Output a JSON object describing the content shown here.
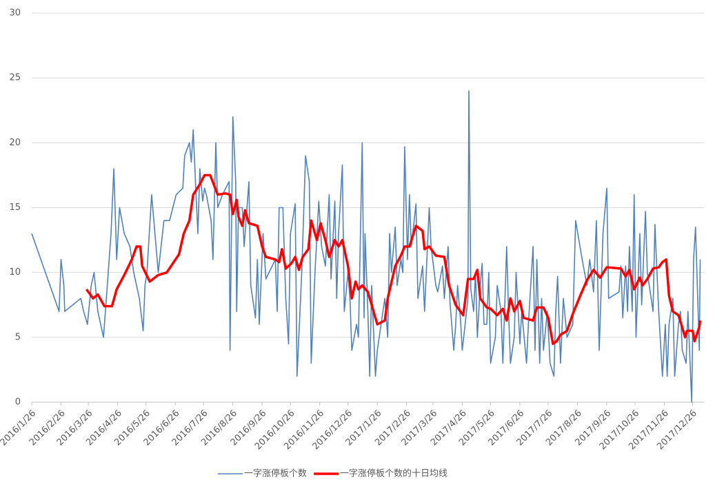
{
  "chart_data": {
    "type": "line",
    "xlim": [
      "2016/1/26",
      "2018/1/7"
    ],
    "xticks": [
      "2016/1/26",
      "2016/2/26",
      "2016/3/26",
      "2016/4/26",
      "2016/5/26",
      "2016/6/26",
      "2016/7/26",
      "2016/8/26",
      "2016/9/26",
      "2016/10/26",
      "2016/11/26",
      "2016/12/26",
      "2017/1/26",
      "2017/2/26",
      "2017/3/26",
      "2017/4/26",
      "2017/5/26",
      "2017/6/26",
      "2017/7/26",
      "2017/8/26",
      "2017/9/26",
      "2017/10/26",
      "2017/11/26",
      "2017/12/26"
    ],
    "ylim": [
      0,
      30
    ],
    "yticks": [
      0,
      5,
      10,
      15,
      20,
      25,
      30
    ],
    "grid": true,
    "legend": "bottom",
    "series": [
      {
        "name": "一字涨停板个数",
        "color": "#4f81bd",
        "width": 1.6,
        "x": [
          "2016/1/26",
          "2016/2/24",
          "2016/2/26",
          "2016/2/29",
          "2016/3/1",
          "2016/3/18",
          "2016/3/21",
          "2016/3/25",
          "2016/3/29",
          "2016/4/1",
          "2016/4/5",
          "2016/4/11",
          "2016/4/15",
          "2016/4/19",
          "2016/4/22",
          "2016/4/25",
          "2016/4/28",
          "2016/5/3",
          "2016/5/9",
          "2016/5/13",
          "2016/5/16",
          "2016/5/19",
          "2016/5/23",
          "2016/5/25",
          "2016/5/27",
          "2016/6/1",
          "2016/6/8",
          "2016/6/14",
          "2016/6/20",
          "2016/6/27",
          "2016/7/4",
          "2016/7/6",
          "2016/7/11",
          "2016/7/13",
          "2016/7/15",
          "2016/7/18",
          "2016/7/20",
          "2016/7/22",
          "2016/7/25",
          "2016/7/27",
          "2016/7/29",
          "2016/8/3",
          "2016/8/5",
          "2016/8/8",
          "2016/8/10",
          "2016/8/15",
          "2016/8/22",
          "2016/8/23",
          "2016/8/26",
          "2016/8/29",
          "2016/8/30",
          "2016/9/1",
          "2016/9/5",
          "2016/9/7",
          "2016/9/9",
          "2016/9/12",
          "2016/9/14",
          "2016/9/19",
          "2016/9/21",
          "2016/9/23",
          "2016/9/27",
          "2016/9/30",
          "2016/10/10",
          "2016/10/12",
          "2016/10/14",
          "2016/10/18",
          "2016/10/21",
          "2016/10/24",
          "2016/10/26",
          "2016/10/31",
          "2016/11/2",
          "2016/11/7",
          "2016/11/11",
          "2016/11/15",
          "2016/11/17",
          "2016/11/21",
          "2016/11/25",
          "2016/11/28",
          "2016/12/2",
          "2016/12/6",
          "2016/12/8",
          "2016/12/12",
          "2016/12/14",
          "2016/12/16",
          "2016/12/20",
          "2016/12/22",
          "2016/12/26",
          "2016/12/28",
          "2016/12/30",
          "2017/1/4",
          "2017/1/6",
          "2017/1/10",
          "2017/1/12",
          "2017/1/13",
          "2017/1/16",
          "2017/1/18",
          "2017/1/20",
          "2017/1/24",
          "2017/1/26",
          "2017/2/3",
          "2017/2/6",
          "2017/2/8",
          "2017/2/10",
          "2017/2/14",
          "2017/2/16",
          "2017/2/20",
          "2017/2/22",
          "2017/2/24",
          "2017/2/27",
          "2017/3/1",
          "2017/3/3",
          "2017/3/8",
          "2017/3/10",
          "2017/3/15",
          "2017/3/17",
          "2017/3/22",
          "2017/3/24",
          "2017/3/29",
          "2017/3/31",
          "2017/4/5",
          "2017/4/7",
          "2017/4/11",
          "2017/4/13",
          "2017/4/17",
          "2017/4/19",
          "2017/4/21",
          "2017/4/24",
          "2017/4/26",
          "2017/5/2",
          "2017/5/3",
          "2017/5/5",
          "2017/5/8",
          "2017/5/10",
          "2017/5/12",
          "2017/5/15",
          "2017/5/17",
          "2017/5/19",
          "2017/5/22",
          "2017/5/24",
          "2017/5/26",
          "2017/5/31",
          "2017/6/2",
          "2017/6/6",
          "2017/6/8",
          "2017/6/12",
          "2017/6/14",
          "2017/6/16",
          "2017/6/20",
          "2017/6/22",
          "2017/6/26",
          "2017/6/28",
          "2017/7/3",
          "2017/7/5",
          "2017/7/10",
          "2017/7/12",
          "2017/7/14",
          "2017/7/17",
          "2017/7/19",
          "2017/7/21",
          "2017/7/25",
          "2017/7/28",
          "2017/8/1",
          "2017/8/3",
          "2017/8/5",
          "2017/8/8",
          "2017/8/11",
          "2017/8/15",
          "2017/8/21",
          "2017/8/24",
          "2017/8/31",
          "2017/9/5",
          "2017/9/8",
          "2017/9/12",
          "2017/9/15",
          "2017/9/18",
          "2017/9/22",
          "2017/9/26",
          "2017/9/28",
          "2017/10/9",
          "2017/10/11",
          "2017/10/13",
          "2017/10/16",
          "2017/10/18",
          "2017/10/20",
          "2017/10/23",
          "2017/10/25",
          "2017/10/27",
          "2017/10/31",
          "2017/11/2",
          "2017/11/6",
          "2017/11/8",
          "2017/11/14",
          "2017/11/16",
          "2017/11/20",
          "2017/11/24",
          "2017/11/27",
          "2017/11/29",
          "2017/12/1",
          "2017/12/5",
          "2017/12/7",
          "2017/12/11",
          "2017/12/13",
          "2017/12/15",
          "2017/12/19",
          "2017/12/21",
          "2017/12/25",
          "2017/12/27",
          "2017/12/29",
          "2018/1/2",
          "2018/1/3"
        ],
        "values": [
          13,
          7,
          11,
          9,
          7,
          8,
          7,
          6,
          9,
          10,
          7,
          5,
          9,
          13,
          18,
          11,
          15,
          13,
          12,
          10,
          9,
          8,
          5.5,
          9,
          10,
          16,
          10,
          14,
          14,
          16,
          16.5,
          19,
          20,
          18.5,
          21,
          16,
          13,
          18,
          15.5,
          16.5,
          16,
          14,
          11,
          20,
          15,
          16,
          17,
          4,
          22,
          17,
          7,
          15,
          15,
          12,
          14,
          17,
          9,
          6.5,
          11,
          6,
          13,
          9.5,
          11,
          7,
          15,
          15,
          8,
          4.5,
          13,
          15.3,
          2,
          10,
          19,
          17,
          3,
          10,
          15.5,
          12,
          10.5,
          16,
          9.5,
          15.5,
          8,
          13,
          18.3,
          7,
          10,
          8,
          4,
          6,
          5,
          20,
          6.5,
          13,
          7,
          2,
          9,
          2,
          4,
          8,
          5,
          13,
          10,
          13.5,
          9,
          11,
          10,
          19.7,
          11,
          16,
          12,
          15.3,
          8,
          10.5,
          7,
          15,
          12,
          9,
          8.5,
          10.5,
          8,
          12,
          7.7,
          4,
          6,
          9,
          6.5,
          4,
          8,
          24,
          8.7,
          7,
          10,
          5,
          9,
          10.7,
          6,
          6,
          10,
          3,
          5,
          9,
          7,
          3,
          12,
          7,
          3,
          5,
          10,
          4.5,
          7,
          3,
          6,
          12,
          4,
          11,
          3,
          8,
          4,
          7,
          3,
          2,
          7,
          9.7,
          3,
          8,
          5,
          6,
          14,
          11,
          9,
          11,
          8.5,
          14,
          4,
          13,
          16.5,
          8,
          8.5,
          10.5,
          6.5,
          10.5,
          7,
          12,
          7,
          16,
          5,
          13,
          7.5,
          14.7,
          10,
          7,
          13.7,
          7,
          2,
          6,
          2,
          6,
          8,
          2,
          6,
          7,
          4,
          3,
          7,
          0,
          11,
          13.5,
          4,
          11
        ]
      },
      {
        "name": "一字涨停板个数的十日均线",
        "color": "#ff0000",
        "width": 3.5,
        "x": [
          "2016/3/24",
          "2016/3/31",
          "2016/4/5",
          "2016/4/12",
          "2016/4/20",
          "2016/4/25",
          "2016/5/3",
          "2016/5/11",
          "2016/5/16",
          "2016/5/20",
          "2016/5/22",
          "2016/5/30",
          "2016/6/8",
          "2016/6/17",
          "2016/6/30",
          "2016/7/5",
          "2016/7/11",
          "2016/7/15",
          "2016/7/22",
          "2016/7/27",
          "2016/8/2",
          "2016/8/10",
          "2016/8/18",
          "2016/8/23",
          "2016/8/26",
          "2016/8/30",
          "2016/9/1",
          "2016/9/5",
          "2016/9/8",
          "2016/9/12",
          "2016/9/21",
          "2016/9/26",
          "2016/9/30",
          "2016/10/10",
          "2016/10/14",
          "2016/10/17",
          "2016/10/21",
          "2016/10/27",
          "2016/10/31",
          "2016/11/4",
          "2016/11/8",
          "2016/11/14",
          "2016/11/17",
          "2016/11/23",
          "2016/11/27",
          "2016/12/2",
          "2016/12/6",
          "2016/12/12",
          "2016/12/16",
          "2016/12/20",
          "2016/12/26",
          "2016/12/30",
          "2017/1/3",
          "2017/1/6",
          "2017/1/10",
          "2017/1/16",
          "2017/1/20",
          "2017/1/26",
          "2017/2/3",
          "2017/2/6",
          "2017/2/14",
          "2017/2/20",
          "2017/2/24",
          "2017/3/1",
          "2017/3/8",
          "2017/3/15",
          "2017/3/17",
          "2017/3/22",
          "2017/3/29",
          "2017/4/7",
          "2017/4/12",
          "2017/4/19",
          "2017/4/27",
          "2017/5/2",
          "2017/5/8",
          "2017/5/12",
          "2017/5/15",
          "2017/5/22",
          "2017/5/26",
          "2017/6/2",
          "2017/6/8",
          "2017/6/12",
          "2017/6/16",
          "2017/6/20",
          "2017/6/26",
          "2017/6/30",
          "2017/7/10",
          "2017/7/14",
          "2017/7/21",
          "2017/7/26",
          "2017/7/31",
          "2017/8/4",
          "2017/8/8",
          "2017/8/15",
          "2017/8/21",
          "2017/8/30",
          "2017/9/5",
          "2017/9/12",
          "2017/9/19",
          "2017/9/26",
          "2017/10/11",
          "2017/10/16",
          "2017/10/20",
          "2017/10/25",
          "2017/10/31",
          "2017/11/3",
          "2017/11/8",
          "2017/11/14",
          "2017/11/20",
          "2017/11/24",
          "2017/11/28",
          "2017/12/1",
          "2017/12/5",
          "2017/12/11",
          "2017/12/14",
          "2017/12/18",
          "2017/12/20",
          "2017/12/26",
          "2017/12/28",
          "2018/1/2",
          "2018/1/3"
        ],
        "values": [
          8.7,
          8,
          8.3,
          7.4,
          7.4,
          8.7,
          9.8,
          11,
          12,
          12,
          10.5,
          9.3,
          9.8,
          10,
          11.4,
          13,
          14,
          16,
          16.8,
          17.5,
          17.5,
          16,
          16.1,
          16,
          14.5,
          15.6,
          14.3,
          13.6,
          14.8,
          13.8,
          13.6,
          12,
          11.2,
          11,
          10.8,
          11.8,
          10.3,
          10.7,
          11.2,
          10.2,
          11.2,
          11.8,
          14,
          12.5,
          13.8,
          12.5,
          11.2,
          12.5,
          12,
          12.5,
          10.5,
          8,
          9.3,
          8.7,
          9,
          8.5,
          7.5,
          6,
          6.3,
          8,
          10.5,
          11.3,
          12,
          12,
          13.6,
          13.2,
          11.8,
          12,
          11.3,
          11.2,
          9,
          7.5,
          6.7,
          9.5,
          9.5,
          10.2,
          8,
          7.3,
          7.2,
          6.7,
          7.2,
          6.3,
          8,
          7,
          7.8,
          6.5,
          6.3,
          7.3,
          7.3,
          6.5,
          4.5,
          4.7,
          5.2,
          5.5,
          6.8,
          8.4,
          9.4,
          10.2,
          9.6,
          10.4,
          10.3,
          9.7,
          10.2,
          8.7,
          9.6,
          9,
          9.5,
          10.3,
          10.4,
          10.8,
          11,
          8.2,
          7,
          6.7,
          6,
          5,
          5.5,
          5.5,
          4.7,
          5.8,
          6.3
        ]
      }
    ]
  }
}
